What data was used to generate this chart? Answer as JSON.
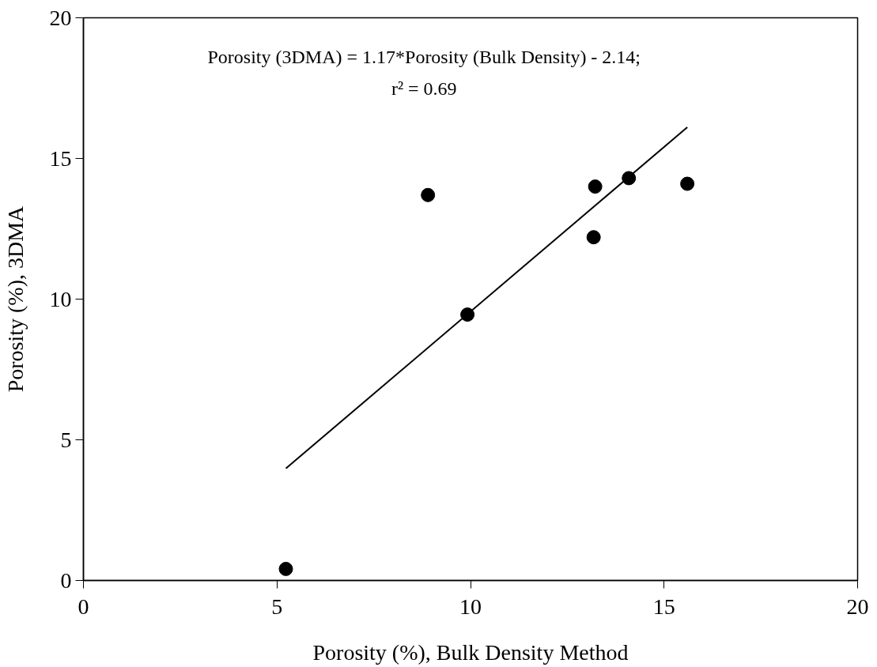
{
  "chart_data": {
    "type": "scatter",
    "xlabel": "Porosity (%), Bulk Density Method",
    "ylabel": "Porosity (%), 3DMA",
    "series": [
      {
        "color": "#000000",
        "marker": "circle",
        "x": [
          5.23,
          8.9,
          9.92,
          13.22,
          13.18,
          14.09,
          15.6
        ],
        "values": [
          0.41,
          13.7,
          9.45,
          14.0,
          12.2,
          14.3,
          14.1
        ]
      },
      {
        "type": "line",
        "color": "#000000",
        "marker": "none",
        "line_style": "solid",
        "x": [
          5.23,
          15.6
        ],
        "values": [
          3.98,
          16.11
        ]
      }
    ],
    "annotations": [
      "Porosity (3DMA) = 1.17*Porosity (Bulk Density) - 2.14;",
      "r² = 0.69"
    ],
    "xlim": [
      0,
      20
    ],
    "ylim": [
      0,
      20
    ],
    "xticks": [
      0,
      5,
      10,
      15,
      20
    ],
    "yticks": [
      0,
      5,
      10,
      15,
      20
    ],
    "grid": false
  }
}
